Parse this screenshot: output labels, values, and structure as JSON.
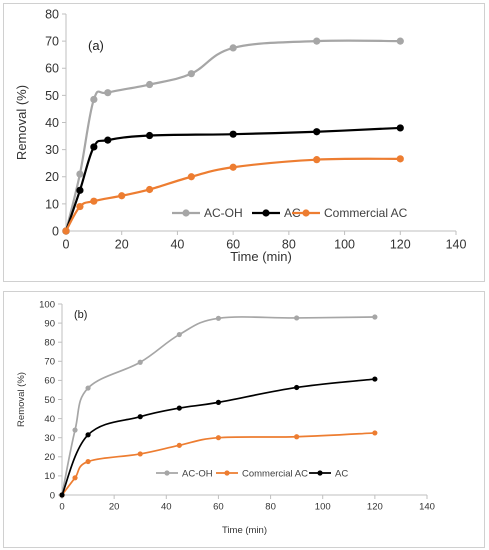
{
  "chart_data": [
    {
      "type": "line",
      "panel_label": "(a)",
      "xlabel": "Time (min)",
      "ylabel": "Removal (%)",
      "xlim": [
        0,
        140
      ],
      "ylim": [
        0,
        80
      ],
      "xticks": [
        0,
        20,
        40,
        60,
        80,
        100,
        120,
        140
      ],
      "yticks": [
        0,
        10,
        20,
        30,
        40,
        50,
        60,
        70,
        80
      ],
      "grid": false,
      "legend_position": "bottom-right",
      "series": [
        {
          "name": "AC-OH",
          "color": "#a6a6a6",
          "x": [
            0,
            5,
            10,
            15,
            30,
            45,
            60,
            90,
            120
          ],
          "y": [
            0,
            21,
            48.5,
            51,
            54,
            58,
            67.5,
            70,
            70
          ]
        },
        {
          "name": "AC",
          "color": "#000000",
          "x": [
            0,
            5,
            10,
            15,
            30,
            60,
            90,
            120
          ],
          "y": [
            0,
            15,
            31,
            33.5,
            35.2,
            35.7,
            36.6,
            38
          ]
        },
        {
          "name": "Commercial AC",
          "color": "#ed7d31",
          "x": [
            0,
            5,
            10,
            20,
            30,
            45,
            60,
            90,
            120
          ],
          "y": [
            0,
            9,
            11,
            13,
            15.3,
            20,
            23.5,
            26.3,
            26.6
          ]
        }
      ]
    },
    {
      "type": "line",
      "panel_label": "(b)",
      "xlabel": "Time (min)",
      "ylabel": "Removal (%)",
      "xlim": [
        0,
        140
      ],
      "ylim": [
        0,
        100
      ],
      "xticks": [
        0,
        20,
        40,
        60,
        80,
        100,
        120,
        140
      ],
      "yticks": [
        0,
        10,
        20,
        30,
        40,
        50,
        60,
        70,
        80,
        90,
        100
      ],
      "grid": false,
      "legend_position": "bottom-center",
      "series": [
        {
          "name": "AC-OH",
          "color": "#a6a6a6",
          "x": [
            0,
            5,
            10,
            30,
            45,
            60,
            90,
            120
          ],
          "y": [
            0,
            34,
            56,
            69.5,
            84,
            92.5,
            92.7,
            93.2
          ]
        },
        {
          "name": "Commercial AC",
          "color": "#ed7d31",
          "x": [
            0,
            5,
            10,
            30,
            45,
            60,
            90,
            120
          ],
          "y": [
            0,
            9,
            17.5,
            21.5,
            26,
            30,
            30.5,
            32.5
          ]
        },
        {
          "name": "AC",
          "color": "#000000",
          "x": [
            0,
            10,
            30,
            45,
            60,
            90,
            120
          ],
          "y": [
            0,
            31.5,
            41,
            45.5,
            48.5,
            56.3,
            60.7
          ]
        }
      ]
    }
  ]
}
